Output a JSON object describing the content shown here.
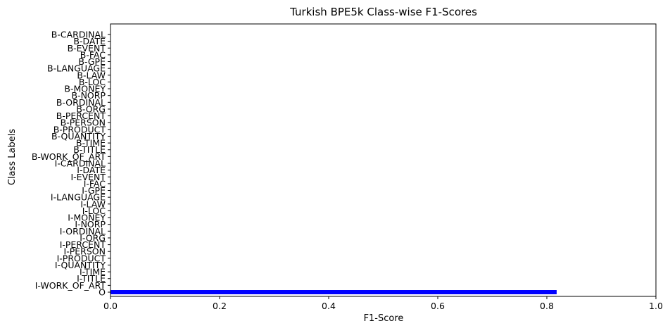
{
  "chart_data": {
    "type": "bar",
    "orientation": "horizontal",
    "title": "Turkish BPE5k Class-wise F1-Scores",
    "xlabel": "F1-Score",
    "ylabel": "Class Labels",
    "xlim": [
      0,
      1.0
    ],
    "xticks": [
      "0.0",
      "0.2",
      "0.4",
      "0.6",
      "0.8",
      "1.0"
    ],
    "grid": false,
    "bar_color": "#0000ff",
    "categories": [
      "B-CARDINAL",
      "B-DATE",
      "B-EVENT",
      "B-FAC",
      "B-GPE",
      "B-LANGUAGE",
      "B-LAW",
      "B-LOC",
      "B-MONEY",
      "B-NORP",
      "B-ORDINAL",
      "B-ORG",
      "B-PERCENT",
      "B-PERSON",
      "B-PRODUCT",
      "B-QUANTITY",
      "B-TIME",
      "B-TITLE",
      "B-WORK_OF_ART",
      "I-CARDINAL",
      "I-DATE",
      "I-EVENT",
      "I-FAC",
      "I-GPE",
      "I-LANGUAGE",
      "I-LAW",
      "I-LOC",
      "I-MONEY",
      "I-NORP",
      "I-ORDINAL",
      "I-ORG",
      "I-PERCENT",
      "I-PERSON",
      "I-PRODUCT",
      "I-QUANTITY",
      "I-TIME",
      "I-TITLE",
      "I-WORK_OF_ART",
      "O"
    ],
    "values": [
      0,
      0,
      0,
      0,
      0,
      0,
      0,
      0,
      0,
      0,
      0,
      0,
      0,
      0,
      0,
      0,
      0,
      0,
      0,
      0,
      0,
      0,
      0,
      0,
      0,
      0,
      0,
      0,
      0,
      0,
      0,
      0,
      0,
      0,
      0,
      0,
      0,
      0,
      0.818
    ]
  }
}
